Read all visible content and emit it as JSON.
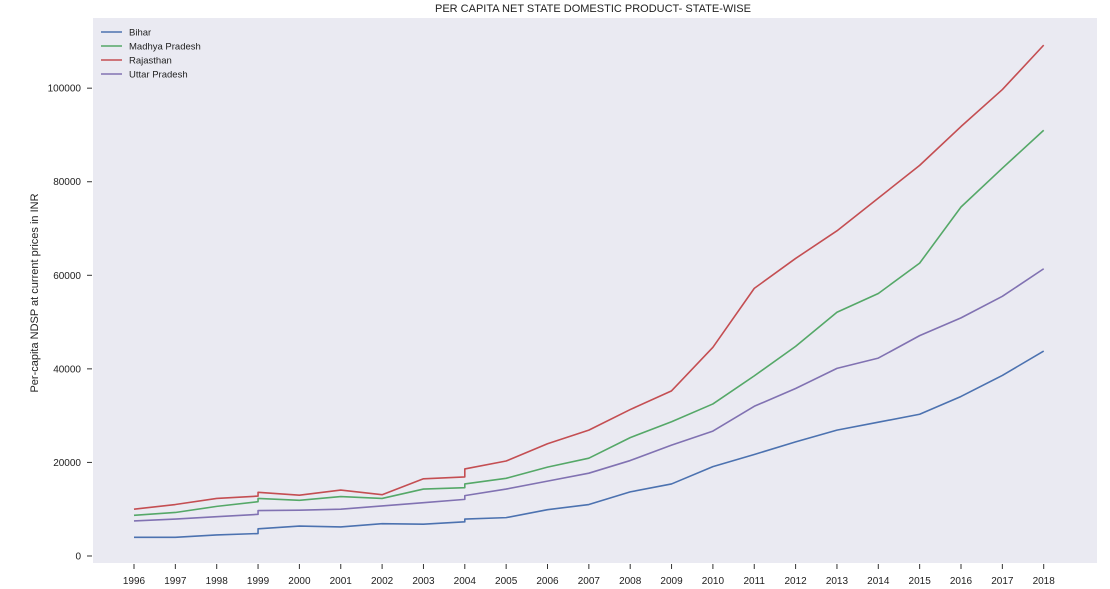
{
  "chart_data": {
    "type": "line",
    "title": "PER CAPITA NET STATE DOMESTIC PRODUCT- STATE-WISE",
    "xlabel": "",
    "ylabel": "Per-capita NDSP at current prices in INR",
    "x_ticks": [
      "1996",
      "1997",
      "1998",
      "1999",
      "2000",
      "2001",
      "2002",
      "2003",
      "2004",
      "2005",
      "2006",
      "2007",
      "2008",
      "2009",
      "2010",
      "2011",
      "2012",
      "2013",
      "2014",
      "2015",
      "2016",
      "2017",
      "2018"
    ],
    "y_ticks": [
      0,
      20000,
      40000,
      60000,
      80000,
      100000
    ],
    "ylim": [
      -1500,
      115000
    ],
    "grid": false,
    "legend_position": "top-left",
    "series": [
      {
        "name": "Bihar",
        "color": "#4c72b0",
        "points": [
          [
            1996,
            4000
          ],
          [
            1997,
            4000
          ],
          [
            1998,
            4500
          ],
          [
            1999,
            4800
          ],
          [
            1999,
            5800
          ],
          [
            2000,
            6400
          ],
          [
            2001,
            6200
          ],
          [
            2002,
            6900
          ],
          [
            2003,
            6800
          ],
          [
            2004,
            7300
          ],
          [
            2004,
            7900
          ],
          [
            2005,
            8200
          ],
          [
            2006,
            9900
          ],
          [
            2007,
            11000
          ],
          [
            2008,
            13700
          ],
          [
            2009,
            15400
          ],
          [
            2010,
            19100
          ],
          [
            2011,
            21700
          ],
          [
            2012,
            24400
          ],
          [
            2013,
            26900
          ],
          [
            2014,
            28600
          ],
          [
            2015,
            30300
          ],
          [
            2016,
            34100
          ],
          [
            2017,
            38600
          ],
          [
            2018,
            43800
          ]
        ]
      },
      {
        "name": "Madhya Pradesh",
        "color": "#55a868",
        "points": [
          [
            1996,
            8700
          ],
          [
            1997,
            9300
          ],
          [
            1998,
            10600
          ],
          [
            1999,
            11600
          ],
          [
            1999,
            12300
          ],
          [
            2000,
            11900
          ],
          [
            2001,
            12700
          ],
          [
            2002,
            12300
          ],
          [
            2003,
            14300
          ],
          [
            2004,
            14600
          ],
          [
            2004,
            15400
          ],
          [
            2005,
            16600
          ],
          [
            2006,
            19000
          ],
          [
            2007,
            20900
          ],
          [
            2008,
            25300
          ],
          [
            2009,
            28700
          ],
          [
            2010,
            32500
          ],
          [
            2011,
            38500
          ],
          [
            2012,
            44800
          ],
          [
            2013,
            52100
          ],
          [
            2014,
            56100
          ],
          [
            2015,
            62600
          ],
          [
            2016,
            74600
          ],
          [
            2017,
            82900
          ],
          [
            2018,
            91000
          ]
        ]
      },
      {
        "name": "Rajasthan",
        "color": "#c44e52",
        "points": [
          [
            1996,
            10000
          ],
          [
            1997,
            11000
          ],
          [
            1998,
            12300
          ],
          [
            1999,
            12800
          ],
          [
            1999,
            13600
          ],
          [
            2000,
            13000
          ],
          [
            2001,
            14100
          ],
          [
            2002,
            13100
          ],
          [
            2003,
            16500
          ],
          [
            2004,
            16900
          ],
          [
            2004,
            18600
          ],
          [
            2005,
            20300
          ],
          [
            2006,
            24000
          ],
          [
            2007,
            26900
          ],
          [
            2008,
            31300
          ],
          [
            2009,
            35300
          ],
          [
            2010,
            44600
          ],
          [
            2011,
            57200
          ],
          [
            2012,
            63600
          ],
          [
            2013,
            69500
          ],
          [
            2014,
            76500
          ],
          [
            2015,
            83500
          ],
          [
            2016,
            91800
          ],
          [
            2017,
            99700
          ],
          [
            2018,
            109200
          ]
        ]
      },
      {
        "name": "Uttar Pradesh",
        "color": "#8172b2",
        "points": [
          [
            1996,
            7500
          ],
          [
            1997,
            7900
          ],
          [
            1998,
            8400
          ],
          [
            1999,
            8900
          ],
          [
            1999,
            9700
          ],
          [
            2000,
            9800
          ],
          [
            2001,
            10000
          ],
          [
            2002,
            10700
          ],
          [
            2003,
            11400
          ],
          [
            2004,
            12100
          ],
          [
            2004,
            12900
          ],
          [
            2005,
            14300
          ],
          [
            2006,
            16000
          ],
          [
            2007,
            17700
          ],
          [
            2008,
            20400
          ],
          [
            2009,
            23700
          ],
          [
            2010,
            26700
          ],
          [
            2011,
            32000
          ],
          [
            2012,
            35800
          ],
          [
            2013,
            40100
          ],
          [
            2014,
            42300
          ],
          [
            2015,
            47100
          ],
          [
            2016,
            50900
          ],
          [
            2017,
            55500
          ],
          [
            2018,
            61400
          ]
        ]
      }
    ]
  }
}
